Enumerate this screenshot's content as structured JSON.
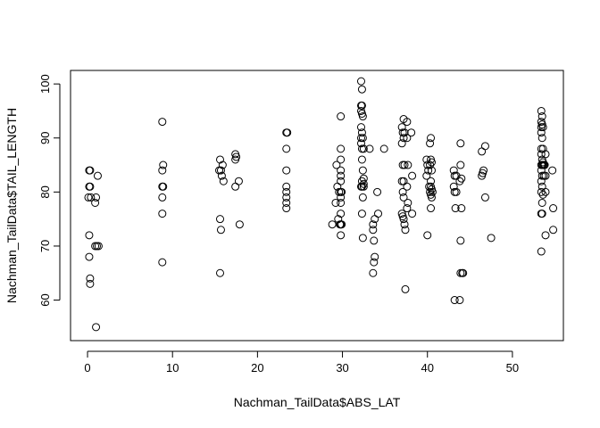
{
  "chart_data": {
    "type": "scatter",
    "xlabel": "Nachman_TailData$ABS_LAT",
    "ylabel": "Nachman_TailData$TAIL_LENGTH",
    "xlim": [
      -2,
      56
    ],
    "ylim": [
      52.5,
      102.5
    ],
    "x_ticks": [
      0,
      10,
      20,
      30,
      40,
      50
    ],
    "y_ticks": [
      60,
      70,
      80,
      90,
      100
    ],
    "grid": false,
    "marker": "open-circle",
    "points": [
      {
        "x": 0.2,
        "y": 84
      },
      {
        "x": 0.3,
        "y": 84
      },
      {
        "x": 0.2,
        "y": 81
      },
      {
        "x": 0.3,
        "y": 81
      },
      {
        "x": 0.1,
        "y": 79
      },
      {
        "x": 0.4,
        "y": 79
      },
      {
        "x": 0.2,
        "y": 72
      },
      {
        "x": 0.2,
        "y": 68
      },
      {
        "x": 0.3,
        "y": 64
      },
      {
        "x": 0.3,
        "y": 63
      },
      {
        "x": 0.9,
        "y": 78
      },
      {
        "x": 1.0,
        "y": 79
      },
      {
        "x": 1.2,
        "y": 83
      },
      {
        "x": 0.9,
        "y": 70
      },
      {
        "x": 1.1,
        "y": 70
      },
      {
        "x": 1.3,
        "y": 70
      },
      {
        "x": 1.0,
        "y": 55
      },
      {
        "x": 8.8,
        "y": 93
      },
      {
        "x": 8.9,
        "y": 85
      },
      {
        "x": 8.8,
        "y": 84
      },
      {
        "x": 8.8,
        "y": 81
      },
      {
        "x": 8.9,
        "y": 81
      },
      {
        "x": 8.8,
        "y": 79
      },
      {
        "x": 8.8,
        "y": 76
      },
      {
        "x": 8.8,
        "y": 67
      },
      {
        "x": 15.6,
        "y": 86
      },
      {
        "x": 15.9,
        "y": 85
      },
      {
        "x": 15.5,
        "y": 84
      },
      {
        "x": 15.7,
        "y": 84
      },
      {
        "x": 15.8,
        "y": 83
      },
      {
        "x": 16.0,
        "y": 82
      },
      {
        "x": 15.6,
        "y": 75
      },
      {
        "x": 15.7,
        "y": 73
      },
      {
        "x": 15.6,
        "y": 65
      },
      {
        "x": 17.4,
        "y": 87
      },
      {
        "x": 17.5,
        "y": 86.5
      },
      {
        "x": 17.4,
        "y": 86
      },
      {
        "x": 17.8,
        "y": 82
      },
      {
        "x": 17.4,
        "y": 81
      },
      {
        "x": 17.9,
        "y": 74
      },
      {
        "x": 23.4,
        "y": 91
      },
      {
        "x": 23.5,
        "y": 91
      },
      {
        "x": 23.4,
        "y": 88
      },
      {
        "x": 23.4,
        "y": 84
      },
      {
        "x": 23.4,
        "y": 81
      },
      {
        "x": 23.4,
        "y": 80
      },
      {
        "x": 23.4,
        "y": 79
      },
      {
        "x": 23.4,
        "y": 78
      },
      {
        "x": 23.4,
        "y": 77
      },
      {
        "x": 28.8,
        "y": 74
      },
      {
        "x": 29.2,
        "y": 78
      },
      {
        "x": 29.3,
        "y": 85
      },
      {
        "x": 29.4,
        "y": 81
      },
      {
        "x": 29.5,
        "y": 75
      },
      {
        "x": 29.6,
        "y": 80
      },
      {
        "x": 29.7,
        "y": 74
      },
      {
        "x": 29.8,
        "y": 94
      },
      {
        "x": 29.8,
        "y": 88
      },
      {
        "x": 29.8,
        "y": 86
      },
      {
        "x": 29.8,
        "y": 84
      },
      {
        "x": 29.8,
        "y": 83
      },
      {
        "x": 29.8,
        "y": 82
      },
      {
        "x": 29.8,
        "y": 80
      },
      {
        "x": 29.9,
        "y": 80
      },
      {
        "x": 29.8,
        "y": 79
      },
      {
        "x": 29.8,
        "y": 78
      },
      {
        "x": 29.8,
        "y": 76
      },
      {
        "x": 29.8,
        "y": 74
      },
      {
        "x": 29.8,
        "y": 72
      },
      {
        "x": 29.9,
        "y": 74
      },
      {
        "x": 32.2,
        "y": 100.5
      },
      {
        "x": 32.3,
        "y": 99
      },
      {
        "x": 32.2,
        "y": 96
      },
      {
        "x": 32.3,
        "y": 96
      },
      {
        "x": 32.2,
        "y": 95
      },
      {
        "x": 32.3,
        "y": 94.5
      },
      {
        "x": 32.4,
        "y": 94
      },
      {
        "x": 32.2,
        "y": 92
      },
      {
        "x": 32.3,
        "y": 91
      },
      {
        "x": 32.2,
        "y": 90
      },
      {
        "x": 32.4,
        "y": 90
      },
      {
        "x": 32.2,
        "y": 89
      },
      {
        "x": 32.3,
        "y": 88
      },
      {
        "x": 32.5,
        "y": 88
      },
      {
        "x": 32.3,
        "y": 86
      },
      {
        "x": 32.4,
        "y": 84
      },
      {
        "x": 32.5,
        "y": 82.5
      },
      {
        "x": 32.3,
        "y": 82
      },
      {
        "x": 32.5,
        "y": 81.5
      },
      {
        "x": 32.2,
        "y": 81
      },
      {
        "x": 32.3,
        "y": 81
      },
      {
        "x": 32.5,
        "y": 81
      },
      {
        "x": 32.4,
        "y": 79
      },
      {
        "x": 32.3,
        "y": 76
      },
      {
        "x": 32.4,
        "y": 71.5
      },
      {
        "x": 33.2,
        "y": 88
      },
      {
        "x": 33.6,
        "y": 74
      },
      {
        "x": 33.8,
        "y": 75
      },
      {
        "x": 33.6,
        "y": 73
      },
      {
        "x": 33.7,
        "y": 71
      },
      {
        "x": 33.8,
        "y": 68
      },
      {
        "x": 33.7,
        "y": 67
      },
      {
        "x": 33.6,
        "y": 65
      },
      {
        "x": 34.1,
        "y": 80
      },
      {
        "x": 34.2,
        "y": 76
      },
      {
        "x": 34.9,
        "y": 88
      },
      {
        "x": 37.2,
        "y": 93.5
      },
      {
        "x": 37.0,
        "y": 92
      },
      {
        "x": 37.1,
        "y": 91
      },
      {
        "x": 37.3,
        "y": 91
      },
      {
        "x": 37.2,
        "y": 90
      },
      {
        "x": 37.0,
        "y": 89
      },
      {
        "x": 37.1,
        "y": 85
      },
      {
        "x": 37.3,
        "y": 85
      },
      {
        "x": 37.0,
        "y": 82
      },
      {
        "x": 37.2,
        "y": 82
      },
      {
        "x": 37.1,
        "y": 80
      },
      {
        "x": 37.2,
        "y": 79
      },
      {
        "x": 37.0,
        "y": 76
      },
      {
        "x": 37.1,
        "y": 75.5
      },
      {
        "x": 37.2,
        "y": 75
      },
      {
        "x": 37.3,
        "y": 74
      },
      {
        "x": 37.4,
        "y": 73
      },
      {
        "x": 37.4,
        "y": 62
      },
      {
        "x": 37.6,
        "y": 93
      },
      {
        "x": 37.6,
        "y": 90
      },
      {
        "x": 37.7,
        "y": 85
      },
      {
        "x": 37.6,
        "y": 81
      },
      {
        "x": 37.7,
        "y": 78
      },
      {
        "x": 37.6,
        "y": 77
      },
      {
        "x": 38.1,
        "y": 91
      },
      {
        "x": 38.2,
        "y": 83
      },
      {
        "x": 38.2,
        "y": 76
      },
      {
        "x": 39.9,
        "y": 86
      },
      {
        "x": 40.0,
        "y": 85
      },
      {
        "x": 40.1,
        "y": 84
      },
      {
        "x": 39.9,
        "y": 83
      },
      {
        "x": 40.2,
        "y": 81
      },
      {
        "x": 40.0,
        "y": 72
      },
      {
        "x": 40.4,
        "y": 90
      },
      {
        "x": 40.3,
        "y": 89
      },
      {
        "x": 40.4,
        "y": 86
      },
      {
        "x": 40.5,
        "y": 85.5
      },
      {
        "x": 40.3,
        "y": 85
      },
      {
        "x": 40.5,
        "y": 84
      },
      {
        "x": 40.4,
        "y": 82
      },
      {
        "x": 40.4,
        "y": 81
      },
      {
        "x": 40.5,
        "y": 80.5
      },
      {
        "x": 40.6,
        "y": 80
      },
      {
        "x": 40.3,
        "y": 80
      },
      {
        "x": 40.4,
        "y": 79.5
      },
      {
        "x": 40.5,
        "y": 79
      },
      {
        "x": 40.4,
        "y": 77
      },
      {
        "x": 43.1,
        "y": 84
      },
      {
        "x": 43.2,
        "y": 83
      },
      {
        "x": 43.4,
        "y": 83
      },
      {
        "x": 43.1,
        "y": 81
      },
      {
        "x": 43.2,
        "y": 80
      },
      {
        "x": 43.4,
        "y": 80
      },
      {
        "x": 43.3,
        "y": 77
      },
      {
        "x": 43.2,
        "y": 60
      },
      {
        "x": 43.9,
        "y": 89
      },
      {
        "x": 43.9,
        "y": 85
      },
      {
        "x": 43.8,
        "y": 82
      },
      {
        "x": 44.0,
        "y": 82.5
      },
      {
        "x": 44.0,
        "y": 77
      },
      {
        "x": 43.9,
        "y": 71
      },
      {
        "x": 43.9,
        "y": 65
      },
      {
        "x": 44.1,
        "y": 65
      },
      {
        "x": 44.2,
        "y": 65
      },
      {
        "x": 43.8,
        "y": 60
      },
      {
        "x": 46.4,
        "y": 87.5
      },
      {
        "x": 46.5,
        "y": 83.5
      },
      {
        "x": 46.6,
        "y": 84
      },
      {
        "x": 46.4,
        "y": 83
      },
      {
        "x": 46.8,
        "y": 88.5
      },
      {
        "x": 46.8,
        "y": 79
      },
      {
        "x": 47.5,
        "y": 71.5
      },
      {
        "x": 53.4,
        "y": 95
      },
      {
        "x": 53.5,
        "y": 94
      },
      {
        "x": 53.4,
        "y": 93
      },
      {
        "x": 53.5,
        "y": 92.5
      },
      {
        "x": 53.4,
        "y": 92
      },
      {
        "x": 53.6,
        "y": 92
      },
      {
        "x": 53.4,
        "y": 91
      },
      {
        "x": 53.5,
        "y": 90
      },
      {
        "x": 53.4,
        "y": 88
      },
      {
        "x": 53.6,
        "y": 88
      },
      {
        "x": 53.4,
        "y": 87
      },
      {
        "x": 53.5,
        "y": 86
      },
      {
        "x": 53.6,
        "y": 85.5
      },
      {
        "x": 53.4,
        "y": 85
      },
      {
        "x": 53.5,
        "y": 85
      },
      {
        "x": 53.6,
        "y": 85
      },
      {
        "x": 53.7,
        "y": 85
      },
      {
        "x": 53.8,
        "y": 85
      },
      {
        "x": 53.4,
        "y": 84
      },
      {
        "x": 53.5,
        "y": 83
      },
      {
        "x": 53.7,
        "y": 83
      },
      {
        "x": 53.4,
        "y": 82
      },
      {
        "x": 53.5,
        "y": 81
      },
      {
        "x": 53.4,
        "y": 80
      },
      {
        "x": 53.6,
        "y": 79.5
      },
      {
        "x": 53.5,
        "y": 78
      },
      {
        "x": 53.4,
        "y": 76
      },
      {
        "x": 53.5,
        "y": 76
      },
      {
        "x": 53.4,
        "y": 69
      },
      {
        "x": 53.9,
        "y": 87
      },
      {
        "x": 53.9,
        "y": 83
      },
      {
        "x": 53.9,
        "y": 80
      },
      {
        "x": 53.9,
        "y": 72
      },
      {
        "x": 54.7,
        "y": 84
      },
      {
        "x": 54.8,
        "y": 77
      },
      {
        "x": 54.8,
        "y": 73
      }
    ]
  }
}
